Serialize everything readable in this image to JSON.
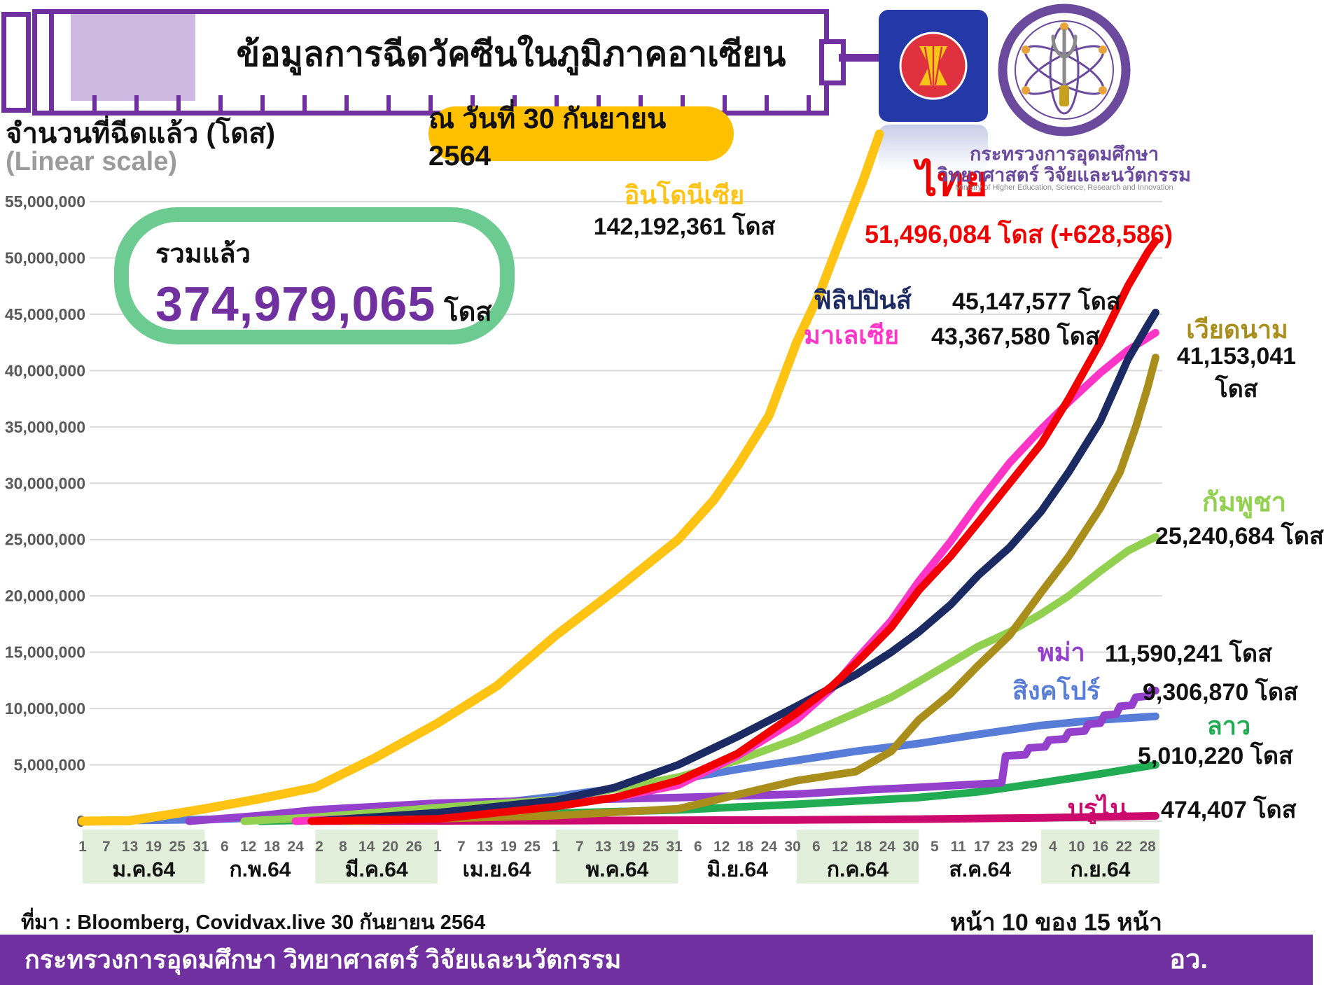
{
  "title": "ข้อมูลการฉีดวัคซีนในภูมิภาคอาเซียน",
  "date_badge": "ณ วันที่ 30 กันยายน 2564",
  "y_axis_title": "จำนวนที่ฉีดแล้ว (โดส)",
  "y_axis_subtitle": "(Linear scale)",
  "total": {
    "label": "รวมแล้ว",
    "value": "374,979,065",
    "unit": "โดส"
  },
  "ministry": {
    "name_line1": "กระทรวงการอุดมศึกษา",
    "name_line2": "วิทยาศาสตร์ วิจัยและนวัตกรรม",
    "name_en": "Ministry of Higher Education, Science, Research and Innovation"
  },
  "source": "ที่มา : Bloomberg, Covidvax.live 30 กันยายน 2564",
  "page_indicator": "หน้า 10 ของ 15 หน้า",
  "footer": {
    "text": "กระทรวงการอุดมศึกษา วิทยาศาสตร์ วิจัยและนวัตกรรม",
    "abbr": "อว."
  },
  "colors": {
    "theme_purple": "#7030A0",
    "badge_yellow": "#FFC000",
    "total_box_green": "#6CCB90",
    "band_green": "#E2EFDA",
    "gridline": "#D9D9D9",
    "axis_text": "#595959",
    "asean_blue": "#2438A8",
    "asean_red": "#E0313F",
    "asean_yellow": "#F5C518"
  },
  "chart_data": {
    "type": "line",
    "title": "ข้อมูลการฉีดวัคซีนในภูมิภาคอาเซียน",
    "xlabel": "",
    "ylabel": "จำนวนที่ฉีดแล้ว (โดส)",
    "ylim": [
      0,
      55000000
    ],
    "grid": true,
    "legend_position": "inline-labels",
    "y_tick_labels": [
      "55,000,000",
      "50,000,000",
      "45,000,000",
      "40,000,000",
      "35,000,000",
      "30,000,000",
      "25,000,000",
      "20,000,000",
      "15,000,000",
      "10,000,000",
      "5,000,000",
      "0"
    ],
    "x_months": [
      {
        "label": "ม.ค.64",
        "start_day": 0,
        "length": 31,
        "days": [
          1,
          7,
          13,
          19,
          25,
          31
        ],
        "shaded": true
      },
      {
        "label": "ก.พ.64",
        "start_day": 31,
        "length": 28,
        "days": [
          6,
          12,
          18,
          24
        ],
        "shaded": false
      },
      {
        "label": "มี.ค.64",
        "start_day": 59,
        "length": 31,
        "days": [
          2,
          8,
          14,
          20,
          26
        ],
        "shaded": true
      },
      {
        "label": "เม.ย.64",
        "start_day": 90,
        "length": 30,
        "days": [
          1,
          7,
          13,
          19,
          25
        ],
        "shaded": false
      },
      {
        "label": "พ.ค.64",
        "start_day": 120,
        "length": 31,
        "days": [
          1,
          7,
          13,
          19,
          25,
          31
        ],
        "shaded": true
      },
      {
        "label": "มิ.ย.64",
        "start_day": 151,
        "length": 30,
        "days": [
          6,
          12,
          18,
          24,
          30
        ],
        "shaded": false
      },
      {
        "label": "ก.ค.64",
        "start_day": 181,
        "length": 31,
        "days": [
          6,
          12,
          18,
          24,
          30
        ],
        "shaded": true
      },
      {
        "label": "ส.ค.64",
        "start_day": 212,
        "length": 31,
        "days": [
          5,
          11,
          17,
          23,
          29
        ],
        "shaded": false
      },
      {
        "label": "ก.ย.64",
        "start_day": 243,
        "length": 30,
        "days": [
          4,
          10,
          16,
          22,
          28
        ],
        "shaded": true
      }
    ],
    "series": [
      {
        "key": "indonesia",
        "name": "อินโดนีเซีย",
        "final_value": 142192361,
        "value_label": "142,192,361 โดส",
        "color": "#FFC413",
        "points": [
          [
            0,
            0
          ],
          [
            12,
            50000
          ],
          [
            24,
            700000
          ],
          [
            31,
            1100000
          ],
          [
            45,
            2000000
          ],
          [
            59,
            3000000
          ],
          [
            74,
            5600000
          ],
          [
            90,
            8700000
          ],
          [
            105,
            12000000
          ],
          [
            120,
            16500000
          ],
          [
            135,
            20500000
          ],
          [
            151,
            25000000
          ],
          [
            160,
            28500000
          ],
          [
            166,
            31500000
          ],
          [
            174,
            36000000
          ],
          [
            181,
            42500000
          ],
          [
            187,
            47000000
          ],
          [
            193,
            52500000
          ],
          [
            198,
            57000000
          ],
          [
            202,
            61000000
          ]
        ]
      },
      {
        "key": "thailand",
        "name": "ไทย",
        "final_value": 51496084,
        "value_label": "51,496,084 โดส (+628,586)",
        "color": "#F20000",
        "points": [
          [
            58,
            0
          ],
          [
            90,
            200000
          ],
          [
            120,
            1300000
          ],
          [
            135,
            2100000
          ],
          [
            151,
            3600000
          ],
          [
            166,
            6000000
          ],
          [
            181,
            9600000
          ],
          [
            190,
            12000000
          ],
          [
            196,
            14000000
          ],
          [
            205,
            17200000
          ],
          [
            212,
            20500000
          ],
          [
            220,
            23500000
          ],
          [
            227,
            26500000
          ],
          [
            235,
            30000000
          ],
          [
            243,
            33500000
          ],
          [
            250,
            37500000
          ],
          [
            258,
            42500000
          ],
          [
            265,
            47500000
          ],
          [
            270,
            50500000
          ],
          [
            272,
            51496084
          ]
        ]
      },
      {
        "key": "philippines",
        "name": "ฟิลิปปินส์",
        "final_value": 45147577,
        "value_label": "45,147,577 โดส",
        "color": "#1B2A63",
        "points": [
          [
            59,
            0
          ],
          [
            90,
            750000
          ],
          [
            120,
            1850000
          ],
          [
            135,
            3000000
          ],
          [
            151,
            5000000
          ],
          [
            166,
            7500000
          ],
          [
            181,
            10200000
          ],
          [
            196,
            13000000
          ],
          [
            205,
            15000000
          ],
          [
            212,
            16800000
          ],
          [
            220,
            19200000
          ],
          [
            227,
            21800000
          ],
          [
            235,
            24300000
          ],
          [
            243,
            27500000
          ],
          [
            250,
            31000000
          ],
          [
            258,
            35500000
          ],
          [
            265,
            41000000
          ],
          [
            270,
            44000000
          ],
          [
            272,
            45147577
          ]
        ]
      },
      {
        "key": "malaysia",
        "name": "มาเลเซีย",
        "final_value": 43367580,
        "value_label": "43,367,580 โดส",
        "color": "#FF35C8",
        "points": [
          [
            54,
            0
          ],
          [
            90,
            600000
          ],
          [
            120,
            1400000
          ],
          [
            135,
            2100000
          ],
          [
            151,
            3200000
          ],
          [
            166,
            5800000
          ],
          [
            181,
            9000000
          ],
          [
            190,
            11800000
          ],
          [
            196,
            14300000
          ],
          [
            205,
            17800000
          ],
          [
            212,
            21300000
          ],
          [
            220,
            24800000
          ],
          [
            227,
            28200000
          ],
          [
            235,
            31800000
          ],
          [
            243,
            34800000
          ],
          [
            250,
            37200000
          ],
          [
            258,
            39800000
          ],
          [
            265,
            41800000
          ],
          [
            272,
            43367580
          ]
        ]
      },
      {
        "key": "vietnam",
        "name": "เวียดนาม",
        "final_value": 41153041,
        "value_label": "41,153,041",
        "unit_label": "โดส",
        "color": "#A98E1C",
        "points": [
          [
            66,
            0
          ],
          [
            120,
            500000
          ],
          [
            151,
            1100000
          ],
          [
            181,
            3600000
          ],
          [
            196,
            4400000
          ],
          [
            205,
            6200000
          ],
          [
            212,
            9000000
          ],
          [
            220,
            11300000
          ],
          [
            227,
            13800000
          ],
          [
            235,
            16500000
          ],
          [
            243,
            20300000
          ],
          [
            250,
            23500000
          ],
          [
            258,
            27800000
          ],
          [
            263,
            31000000
          ],
          [
            267,
            35000000
          ],
          [
            270,
            38500000
          ],
          [
            272,
            41153041
          ]
        ]
      },
      {
        "key": "cambodia",
        "name": "กัมพูชา",
        "final_value": 25240684,
        "value_label": "25,240,684 โดส",
        "color": "#92D050",
        "points": [
          [
            41,
            0
          ],
          [
            59,
            350000
          ],
          [
            90,
            1200000
          ],
          [
            120,
            1900000
          ],
          [
            151,
            3900000
          ],
          [
            166,
            5400000
          ],
          [
            181,
            7300000
          ],
          [
            196,
            9600000
          ],
          [
            205,
            11000000
          ],
          [
            212,
            12400000
          ],
          [
            227,
            15500000
          ],
          [
            235,
            16800000
          ],
          [
            243,
            18400000
          ],
          [
            250,
            20000000
          ],
          [
            258,
            22200000
          ],
          [
            265,
            24000000
          ],
          [
            272,
            25240684
          ]
        ]
      },
      {
        "key": "myanmar",
        "name": "พม่า",
        "final_value": 11590241,
        "value_label": "11,590,241 โดส",
        "color": "#9440CC",
        "points": [
          [
            27,
            0
          ],
          [
            45,
            500000
          ],
          [
            59,
            1000000
          ],
          [
            90,
            1600000
          ],
          [
            120,
            1850000
          ],
          [
            151,
            2100000
          ],
          [
            181,
            2400000
          ],
          [
            200,
            2800000
          ],
          [
            212,
            3000000
          ],
          [
            225,
            3250000
          ],
          [
            233,
            3400000
          ],
          [
            234,
            5800000
          ],
          [
            239,
            5900000
          ],
          [
            240,
            6500000
          ],
          [
            244,
            6600000
          ],
          [
            245,
            7200000
          ],
          [
            249,
            7300000
          ],
          [
            250,
            7900000
          ],
          [
            254,
            8000000
          ],
          [
            255,
            8600000
          ],
          [
            258,
            8700000
          ],
          [
            259,
            9400000
          ],
          [
            262,
            9500000
          ],
          [
            263,
            10200000
          ],
          [
            266,
            10300000
          ],
          [
            267,
            11000000
          ],
          [
            270,
            11100000
          ],
          [
            271,
            11590241
          ],
          [
            272,
            11590241
          ]
        ]
      },
      {
        "key": "singapore",
        "name": "สิงคโปร์",
        "final_value": 9306870,
        "value_label": "9,306,870 โดส",
        "color": "#587DD8",
        "points": [
          [
            0,
            10000
          ],
          [
            31,
            150000
          ],
          [
            59,
            450000
          ],
          [
            90,
            1050000
          ],
          [
            105,
            1600000
          ],
          [
            120,
            2200000
          ],
          [
            135,
            2900000
          ],
          [
            151,
            3700000
          ],
          [
            166,
            4600000
          ],
          [
            181,
            5400000
          ],
          [
            196,
            6200000
          ],
          [
            212,
            6900000
          ],
          [
            227,
            7700000
          ],
          [
            243,
            8500000
          ],
          [
            258,
            9000000
          ],
          [
            272,
            9306870
          ]
        ]
      },
      {
        "key": "laos",
        "name": "ลาว",
        "final_value": 5010220,
        "value_label": "5,010,220 โดส",
        "color": "#21AB52",
        "points": [
          [
            45,
            0
          ],
          [
            90,
            350000
          ],
          [
            120,
            700000
          ],
          [
            151,
            1000000
          ],
          [
            181,
            1500000
          ],
          [
            212,
            2100000
          ],
          [
            227,
            2600000
          ],
          [
            243,
            3400000
          ],
          [
            258,
            4200000
          ],
          [
            272,
            5010220
          ]
        ]
      },
      {
        "key": "brunei",
        "name": "บรูไน",
        "final_value": 474407,
        "value_label": "474,407 โดส",
        "color": "#CC0A6E",
        "points": [
          [
            60,
            10000
          ],
          [
            120,
            50000
          ],
          [
            181,
            110000
          ],
          [
            212,
            180000
          ],
          [
            243,
            300000
          ],
          [
            272,
            474407
          ]
        ]
      }
    ]
  }
}
